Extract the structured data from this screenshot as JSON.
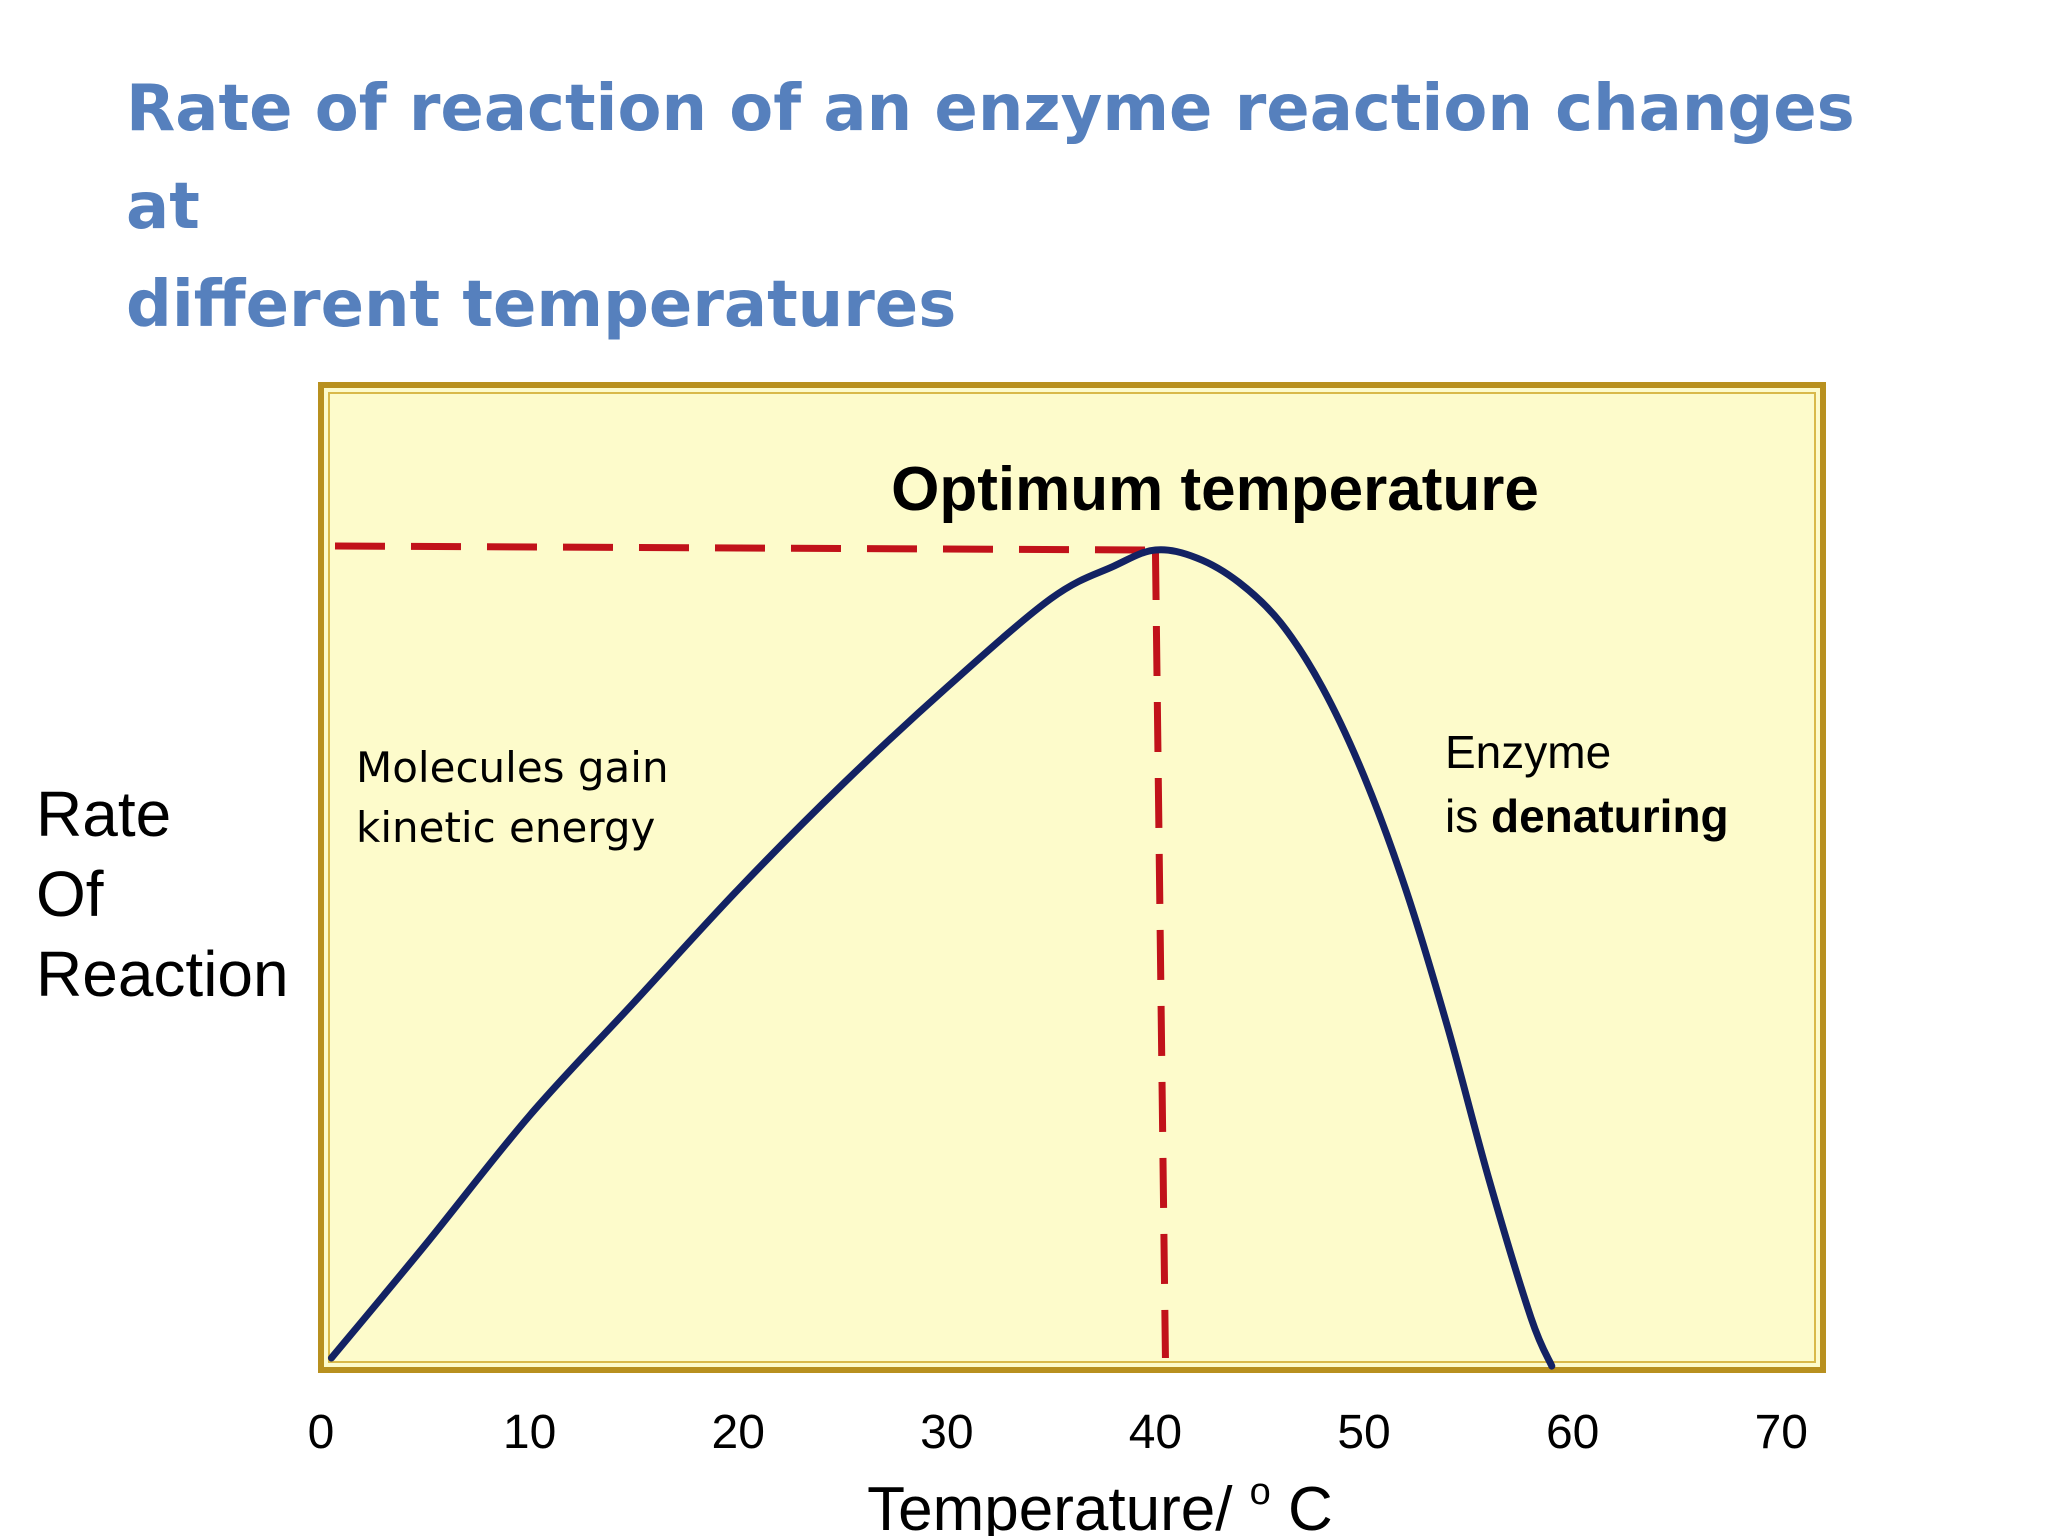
{
  "title": {
    "line1": "Rate of reaction of an enzyme reaction changes at",
    "line2": "different temperatures"
  },
  "colors": {
    "title": "#5680bd",
    "plot_background": "#fdfbcb",
    "plot_border": "#b8901f",
    "curve": "#132263",
    "guide_lines": "#c1121a"
  },
  "chart_data": {
    "type": "line",
    "title": "Optimum temperature",
    "xlabel": "Temperature/°C",
    "xlabel_main": "Temperature/",
    "xlabel_sup": "o",
    "xlabel_unit": "C",
    "ylabel_lines": [
      "Rate",
      "Of",
      "Reaction"
    ],
    "xlim": [
      0,
      72
    ],
    "ylim": [
      0,
      1
    ],
    "xticks": [
      0,
      10,
      20,
      30,
      40,
      50,
      60,
      70
    ],
    "grid": false,
    "legend": "none",
    "series": [
      {
        "x": [
          0.5,
          5,
          10,
          15,
          20,
          25,
          30,
          35,
          38,
          40,
          42,
          44,
          46,
          48,
          50,
          52,
          54,
          56,
          58,
          59
        ],
        "y": [
          0.0,
          0.14,
          0.3,
          0.44,
          0.58,
          0.71,
          0.83,
          0.94,
          0.98,
          1.0,
          0.99,
          0.96,
          0.91,
          0.83,
          0.72,
          0.58,
          0.41,
          0.22,
          0.05,
          -0.01
        ]
      }
    ],
    "optimum": {
      "x": 40,
      "y": 1.0
    },
    "annotations": {
      "left": [
        "Molecules gain",
        "kinetic energy"
      ],
      "right_line1": "Enzyme",
      "right_line2_prefix": "is ",
      "right_line2_bold": "denaturing"
    }
  }
}
